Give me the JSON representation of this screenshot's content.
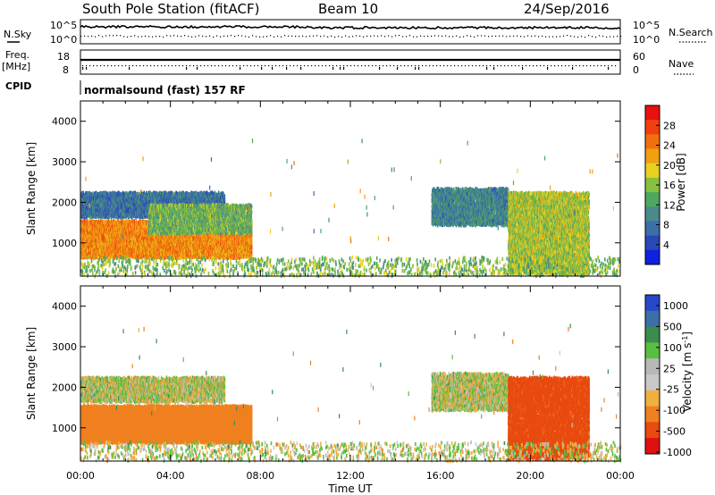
{
  "header": {
    "station": "South Pole Station (fitACF)",
    "beam": "Beam 10",
    "date": "24/Sep/2016"
  },
  "top_panels": {
    "nsky_label": "N.Sky",
    "nsky_ticks": [
      "10^5",
      "10^0"
    ],
    "nsearch_label": "N.Search",
    "nsearch_ticks": [
      "10^5",
      "10^0"
    ],
    "freq_label": "Freq.",
    "freq_unit": "[MHz]",
    "freq_ticks": [
      "18",
      "8"
    ],
    "nave_label": "Nave",
    "nave_ticks": [
      "60",
      "0"
    ],
    "cpid_label": "CPID",
    "cpid_text": "normalsound (fast) 157 RF"
  },
  "colors": {
    "power": [
      "#1020e0",
      "#2848b8",
      "#3c6ea8",
      "#4a8a8a",
      "#4ea860",
      "#88c040",
      "#e8d020",
      "#f0a010",
      "#f07010",
      "#f04010",
      "#e81010"
    ],
    "velocity": [
      "#e01010",
      "#e84a10",
      "#f08020",
      "#f0b040",
      "#c8c8c8",
      "#b8b8b8",
      "#58c040",
      "#3c8c50",
      "#3c6ea8",
      "#2848c8"
    ]
  },
  "chart_data": [
    {
      "type": "heatmap",
      "title": "Power",
      "ylabel": "Slant Range [km]",
      "xlabel": "",
      "ylim": [
        180,
        4500
      ],
      "yticks": [
        1000,
        2000,
        3000,
        4000
      ],
      "colorbar": {
        "label": "Power [dB]",
        "range": [
          0,
          32
        ],
        "ticks": [
          4,
          8,
          12,
          16,
          20,
          24,
          28
        ]
      },
      "regions": [
        {
          "name": "band-near",
          "t0": 0.0,
          "t1": 7.6,
          "r_lo": 700,
          "r_hi": 1600,
          "level": 24,
          "density": 0.85
        },
        {
          "name": "band-far",
          "t0": 0.0,
          "t1": 6.4,
          "r_lo": 1700,
          "r_hi": 2300,
          "level": 7,
          "density": 0.7
        },
        {
          "name": "band-mid",
          "t0": 3.0,
          "t1": 7.6,
          "r_lo": 1300,
          "r_hi": 2000,
          "level": 14,
          "density": 0.55
        },
        {
          "name": "evening-upper",
          "t0": 15.6,
          "t1": 19.0,
          "r_lo": 1500,
          "r_hi": 2400,
          "level": 9,
          "density": 0.55
        },
        {
          "name": "evening-rising",
          "t0": 19.0,
          "t1": 22.6,
          "r_lo": 300,
          "r_hi": 2300,
          "level": 17,
          "density": 0.6
        },
        {
          "name": "ground-scatter",
          "t0": 0.0,
          "t1": 24.0,
          "r_lo": 200,
          "r_hi": 700,
          "level": 15,
          "density": 0.08
        }
      ]
    },
    {
      "type": "heatmap",
      "title": "Velocity",
      "ylabel": "Slant Range [km]",
      "xlabel": "Time UT",
      "xlim": [
        0,
        24
      ],
      "xticks": [
        "00:00",
        "04:00",
        "08:00",
        "12:00",
        "16:00",
        "20:00",
        "00:00"
      ],
      "ylim": [
        180,
        4500
      ],
      "yticks": [
        1000,
        2000,
        3000,
        4000
      ],
      "colorbar": {
        "label": "Velocity [m s^-1]",
        "ticks": [
          "1000",
          "500",
          "100",
          "25",
          "-25",
          "-100",
          "-500",
          "-1000"
        ]
      },
      "regions": [
        {
          "name": "band-near",
          "t0": 0.0,
          "t1": 7.6,
          "r_lo": 700,
          "r_hi": 1600,
          "level": -300,
          "density": 0.85
        },
        {
          "name": "band-far",
          "t0": 0.0,
          "t1": 6.4,
          "r_lo": 1700,
          "r_hi": 2300,
          "level": 0,
          "density": 0.55
        },
        {
          "name": "evening-upper",
          "t0": 15.6,
          "t1": 19.0,
          "r_lo": 1500,
          "r_hi": 2400,
          "level": 0,
          "density": 0.55
        },
        {
          "name": "evening-rising",
          "t0": 19.0,
          "t1": 22.6,
          "r_lo": 300,
          "r_hi": 2300,
          "level": -600,
          "density": 0.6
        },
        {
          "name": "ground-scatter",
          "t0": 0.0,
          "t1": 24.0,
          "r_lo": 200,
          "r_hi": 700,
          "level": 0,
          "density": 0.08
        }
      ]
    }
  ]
}
